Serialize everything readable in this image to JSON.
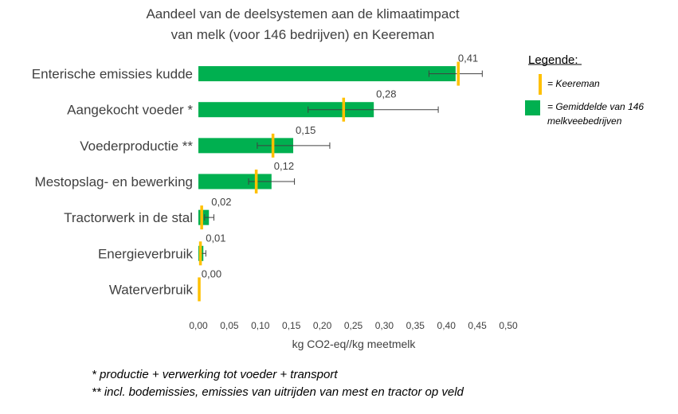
{
  "chart_data": {
    "type": "bar",
    "orientation": "horizontal",
    "title_lines": [
      "Aandeel van de deelsystemen aan de klimaatimpact",
      "van melk (voor 146 bedrijven) en Keereman"
    ],
    "xlabel": "kg CO2-eq//kg meetmelk",
    "ylabel": "",
    "xlim": [
      0,
      0.5
    ],
    "x_ticks": [
      "0,00",
      "0,05",
      "0,10",
      "0,15",
      "0,20",
      "0,25",
      "0,30",
      "0,35",
      "0,40",
      "0,45",
      "0,50"
    ],
    "grid": false,
    "legend_position": "top-right",
    "categories": [
      "Enterische emissies kudde",
      "Aangekocht voeder *",
      "Voederproductie **",
      "Mestopslag- en bewerking",
      "Tractorwerk in de stal",
      "Energieverbruik",
      "Waterverbruik"
    ],
    "series": [
      {
        "name": "= Gemiddelde van 146 melkveebedrijven",
        "color": "#00b050",
        "values": [
          0.415,
          0.283,
          0.153,
          0.118,
          0.017,
          0.008,
          0.001
        ],
        "error_low": [
          0.372,
          0.177,
          0.095,
          0.081,
          0.01,
          0.004,
          0.0
        ],
        "error_high": [
          0.458,
          0.387,
          0.212,
          0.155,
          0.025,
          0.012,
          0.002
        ],
        "data_labels": [
          "0,41",
          "0,28",
          "0,15",
          "0,12",
          "0,02",
          "0,01",
          "0,00"
        ]
      },
      {
        "name": "= Keereman",
        "color": "#ffc000",
        "marker": "vertical-line",
        "values": [
          0.419,
          0.234,
          0.12,
          0.093,
          0.005,
          0.003,
          0.001
        ]
      }
    ],
    "legend": {
      "title": "Legende:",
      "items": [
        {
          "label_lines": [
            "= Keereman"
          ],
          "color": "#ffc000",
          "symbol": "line"
        },
        {
          "label_lines": [
            "= Gemiddelde van 146",
            "melkveebedrijven"
          ],
          "color": "#00b050",
          "symbol": "square"
        }
      ]
    }
  },
  "footnotes": [
    "* productie + verwerking tot voeder + transport",
    "** incl. bodemissies, emissies van uitrijden van mest en tractor op veld"
  ]
}
